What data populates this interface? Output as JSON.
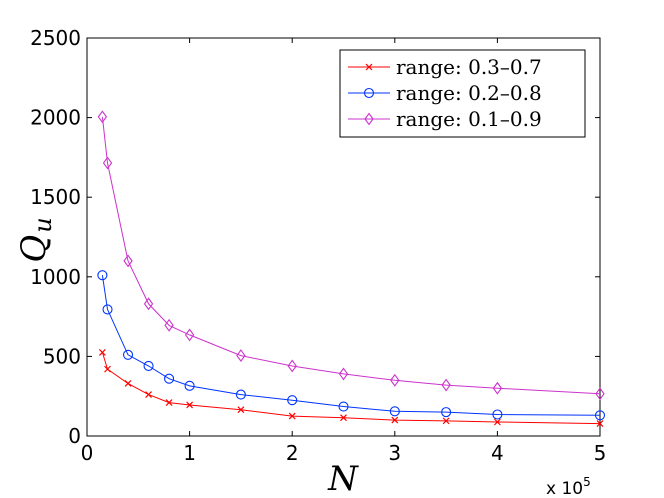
{
  "chart_data": {
    "type": "line",
    "xlabel": "N",
    "ylabel_main": "Q",
    "ylabel_sub": "u",
    "x_multiplier_base": "x 10",
    "x_multiplier_exp": "5",
    "xlim": [
      0,
      5
    ],
    "ylim": [
      0,
      2500
    ],
    "xticks": [
      0,
      1,
      2,
      3,
      4,
      5
    ],
    "yticks": [
      0,
      500,
      1000,
      1500,
      2000,
      2500
    ],
    "xtick_labels": [
      "0",
      "1",
      "2",
      "3",
      "4",
      "5"
    ],
    "ytick_labels": [
      "0",
      "500",
      "1000",
      "1500",
      "2000",
      "2500"
    ],
    "grid": false,
    "legend_position": "top-right",
    "x": [
      0.15,
      0.2,
      0.4,
      0.6,
      0.8,
      1.0,
      1.5,
      2.0,
      2.5,
      3.0,
      3.5,
      4.0,
      5.0
    ],
    "series": [
      {
        "name": "range: 0.3–0.7",
        "color": "#ff0000",
        "marker": "x",
        "values": [
          525,
          420,
          330,
          260,
          210,
          195,
          165,
          125,
          115,
          100,
          95,
          88,
          78
        ]
      },
      {
        "name": "range: 0.2–0.8",
        "color": "#0033ff",
        "marker": "o",
        "values": [
          1010,
          795,
          510,
          440,
          360,
          315,
          260,
          225,
          185,
          155,
          150,
          135,
          130
        ]
      },
      {
        "name": "range: 0.1–0.9",
        "color": "#cc33cc",
        "marker": "d",
        "values": [
          2005,
          1715,
          1100,
          830,
          695,
          635,
          505,
          440,
          390,
          350,
          320,
          300,
          265
        ]
      }
    ]
  }
}
